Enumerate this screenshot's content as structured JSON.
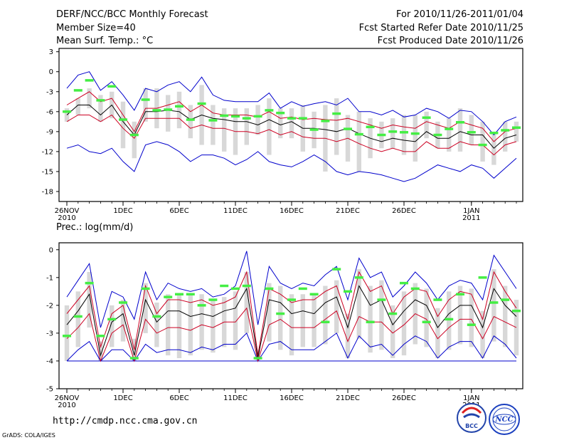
{
  "header": {
    "left": [
      "DERF/NCC/BCC Monthly Forecast",
      "Member Size=40",
      "Mean Surf. Temp.: °C"
    ],
    "right": [
      "For 2010/11/26-2011/01/04",
      "Fcst Started Refer Date 2010/11/25",
      "Fcst Produced Date 2010/11/26"
    ]
  },
  "footer": {
    "url": "http://cmdp.ncc.cma.gov.cn",
    "credit": "GrADS: COLA/IGES",
    "logo_left": "BCC",
    "logo_right": "NCC"
  },
  "colors": {
    "max_min": "#0000cc",
    "quartile": "#cc0022",
    "median": "#000000",
    "box": "#d8d8d8",
    "ensemble_mean": "#44ee44",
    "floor": "#0000cc"
  },
  "chart_data": [
    {
      "type": "box-line",
      "title": "Mean Surf. Temp.: °C",
      "days": 40,
      "ylim": [
        -19.5,
        3.5
      ],
      "yticks": [
        3,
        0,
        -3,
        -6,
        -9,
        -12,
        -15,
        -18
      ],
      "xticks": [
        {
          "day": 0,
          "label": "26NOV",
          "label2": "2010"
        },
        {
          "day": 5,
          "label": "1DEC"
        },
        {
          "day": 10,
          "label": "6DEC"
        },
        {
          "day": 15,
          "label": "11DEC"
        },
        {
          "day": 20,
          "label": "16DEC"
        },
        {
          "day": 25,
          "label": "21DEC"
        },
        {
          "day": 30,
          "label": "26DEC"
        },
        {
          "day": 36,
          "label": "1JAN",
          "label2": "2011"
        }
      ],
      "series": [
        {
          "name": "max",
          "values": [
            -2.5,
            -0.5,
            0,
            -2.8,
            -1.5,
            -3.5,
            -5.8,
            -2.5,
            -3,
            -2,
            -1.5,
            -3,
            -0.8,
            -3.5,
            -4.3,
            -4.5,
            -4.5,
            -4.5,
            -3.2,
            -5.5,
            -4.5,
            -5.2,
            -4.8,
            -4.5,
            -5,
            -4,
            -6,
            -6,
            -6.5,
            -5.8,
            -6.8,
            -6.5,
            -5.5,
            -6,
            -7,
            -5.8,
            -6,
            -7.5,
            -9.5,
            -7.5,
            -6.8
          ]
        },
        {
          "name": "q75",
          "values": [
            -5,
            -4,
            -3,
            -4.5,
            -4,
            -6.5,
            -9,
            -5.5,
            -5.5,
            -5,
            -4.5,
            -6,
            -5,
            -6.2,
            -6.5,
            -6.5,
            -6.5,
            -6.8,
            -6,
            -7,
            -6.8,
            -7.2,
            -7,
            -7.2,
            -7.3,
            -7,
            -7.5,
            -8,
            -8.5,
            -8,
            -8.3,
            -8.5,
            -7.5,
            -8,
            -8.5,
            -7.5,
            -8,
            -8.5,
            -10.5,
            -9,
            -8.5
          ]
        },
        {
          "name": "median",
          "values": [
            -6.5,
            -5,
            -5,
            -6.5,
            -5,
            -7.5,
            -9.5,
            -6,
            -6,
            -5.8,
            -6,
            -7.2,
            -6.5,
            -7,
            -7.2,
            -7.5,
            -7.5,
            -8,
            -7.2,
            -8,
            -7.5,
            -8.5,
            -8.5,
            -8.7,
            -9,
            -8.5,
            -9.3,
            -10,
            -10.5,
            -10,
            -10.3,
            -10.5,
            -9,
            -10,
            -10,
            -9,
            -9.5,
            -9.5,
            -11.5,
            -10,
            -9.5
          ]
        },
        {
          "name": "q25",
          "values": [
            -7.5,
            -6.5,
            -6.5,
            -7.5,
            -6.5,
            -8.5,
            -10,
            -7,
            -7,
            -7,
            -7,
            -8.5,
            -8,
            -8.5,
            -8.5,
            -9,
            -9,
            -9.3,
            -8.7,
            -9.5,
            -9,
            -9.8,
            -10,
            -10,
            -10.5,
            -10,
            -10.8,
            -11.5,
            -12,
            -11.5,
            -12,
            -12,
            -10.5,
            -11.5,
            -11.5,
            -10.5,
            -11,
            -11,
            -12.5,
            -11,
            -10.5
          ]
        },
        {
          "name": "min",
          "values": [
            -11.5,
            -11,
            -12,
            -12.3,
            -11.5,
            -13.5,
            -15,
            -11,
            -10.5,
            -11,
            -12,
            -13.5,
            -12.5,
            -12.5,
            -13,
            -14,
            -13.2,
            -12,
            -13.5,
            -14,
            -14.3,
            -13.5,
            -12.5,
            -13.5,
            -15,
            -15.5,
            -15,
            -15.2,
            -15.5,
            -16,
            -16.5,
            -16,
            -15,
            -14,
            -14.5,
            -15,
            -14,
            -14.5,
            -16,
            -14.5,
            -13
          ]
        },
        {
          "name": "box_hi",
          "values": [
            -5.5,
            -4,
            -2.5,
            -3.5,
            -3,
            -4.5,
            -7.5,
            -2.5,
            -2.5,
            -3.5,
            -3,
            -5,
            -2,
            -5,
            -5.5,
            -5.5,
            -5.5,
            -5,
            -4,
            -5.5,
            -5.5,
            -5,
            -6,
            -5,
            -4,
            -6.5,
            -6,
            -7,
            -7.5,
            -7,
            -6.5,
            -6.5,
            -6,
            -7.5,
            -7,
            -5.5,
            -6.5,
            -7.5,
            -9,
            -7.5,
            -7.5
          ]
        },
        {
          "name": "box_lo",
          "values": [
            -7.5,
            -6.5,
            -5.5,
            -7.5,
            -7,
            -11.5,
            -13,
            -7.5,
            -8.5,
            -9,
            -8.5,
            -10,
            -11,
            -11,
            -12,
            -12.5,
            -11,
            -9.5,
            -12.5,
            -10,
            -10,
            -12,
            -11.5,
            -15,
            -12.5,
            -13.5,
            -15,
            -13,
            -11.5,
            -11.5,
            -12.5,
            -13.5,
            -10,
            -11.5,
            -12,
            -12,
            -11,
            -13.5,
            -14,
            -12,
            -10.5
          ]
        },
        {
          "name": "ensemble_mean",
          "values": [
            -6,
            -2.8,
            -1.3,
            -4.3,
            -2.2,
            -7.2,
            -9.5,
            -4.2,
            -5.8,
            -5.7,
            -5.2,
            -7.2,
            -4.8,
            -7.3,
            -6.6,
            -6.7,
            -7,
            -6.7,
            -5.8,
            -6.2,
            -7,
            -7,
            -8.7,
            -7.4,
            -6.3,
            -8.6,
            -9.4,
            -8.3,
            -9.5,
            -9,
            -9.1,
            -9.3,
            -6.9,
            -9.5,
            -8.6,
            -7.6,
            -9.1,
            -11,
            -9.2,
            -8.8,
            -8.4
          ]
        }
      ]
    },
    {
      "type": "box-line",
      "title": "Prec.: log(mm/d)",
      "days": 40,
      "ylim": [
        -5,
        0.25
      ],
      "yticks": [
        0,
        -1,
        -2,
        -3,
        -4,
        -5
      ],
      "floor": -4,
      "xticks": [
        {
          "day": 0,
          "label": "26NOV",
          "label2": "2010"
        },
        {
          "day": 5,
          "label": "1DEC"
        },
        {
          "day": 10,
          "label": "6DEC"
        },
        {
          "day": 15,
          "label": "11DEC"
        },
        {
          "day": 20,
          "label": "16DEC"
        },
        {
          "day": 25,
          "label": "21DEC"
        },
        {
          "day": 30,
          "label": "26DEC"
        },
        {
          "day": 36,
          "label": "1JAN",
          "label2": "2011"
        }
      ],
      "series": [
        {
          "name": "max",
          "values": [
            -1.7,
            -1.1,
            -0.5,
            -2.8,
            -1.5,
            -1.7,
            -2.5,
            -0.8,
            -1.8,
            -1.2,
            -1.4,
            -1.5,
            -1.4,
            -1.7,
            -1.6,
            -1.3,
            -0.05,
            -2.7,
            -0.6,
            -1.2,
            -1.4,
            -1.2,
            -1.3,
            -0.9,
            -0.6,
            -1.8,
            -0.3,
            -1,
            -0.8,
            -1.7,
            -1.3,
            -0.8,
            -1.2,
            -1.8,
            -1.3,
            -1.1,
            -1.2,
            -1.8,
            -0.2,
            -0.8,
            -1.4
          ]
        },
        {
          "name": "q75",
          "values": [
            -2.3,
            -1.8,
            -1.3,
            -3.5,
            -2.3,
            -2,
            -3.6,
            -1.3,
            -2.3,
            -1.8,
            -1.8,
            -1.9,
            -1.8,
            -2,
            -1.9,
            -1.7,
            -0.8,
            -3.8,
            -1.4,
            -1.6,
            -1.9,
            -1.8,
            -1.8,
            -1.5,
            -1.3,
            -2.5,
            -0.8,
            -1.5,
            -1.3,
            -2.3,
            -1.7,
            -1.4,
            -1.5,
            -2.4,
            -1.8,
            -1.5,
            -1.6,
            -2.5,
            -0.8,
            -1.5,
            -2.1
          ]
        },
        {
          "name": "median",
          "values": [
            -2.7,
            -2.2,
            -1.6,
            -3.8,
            -2.6,
            -2.3,
            -3.8,
            -1.8,
            -2.6,
            -2.2,
            -2.2,
            -2.4,
            -2.3,
            -2.4,
            -2.2,
            -2.1,
            -1.4,
            -3.9,
            -1.8,
            -1.9,
            -2.3,
            -2.2,
            -2.3,
            -1.9,
            -1.7,
            -2.8,
            -1.3,
            -2,
            -1.8,
            -2.7,
            -2.2,
            -1.8,
            -2,
            -2.8,
            -2.3,
            -2,
            -2,
            -2.8,
            -1.4,
            -2,
            -2.4
          ]
        },
        {
          "name": "q25",
          "values": [
            -3.2,
            -2.8,
            -2.3,
            -4,
            -3,
            -2.7,
            -4,
            -2.5,
            -3,
            -2.8,
            -2.8,
            -2.9,
            -2.7,
            -2.8,
            -2.6,
            -2.6,
            -2.1,
            -4,
            -2.7,
            -2.5,
            -2.8,
            -2.8,
            -2.8,
            -2.5,
            -2.2,
            -3.3,
            -2.4,
            -2.6,
            -2.6,
            -3,
            -2.7,
            -2.3,
            -2.5,
            -3.2,
            -2.8,
            -2.5,
            -2.5,
            -3.2,
            -2.4,
            -2.6,
            -2.8
          ]
        },
        {
          "name": "min",
          "values": [
            -4,
            -3.6,
            -3.3,
            -4,
            -3.6,
            -3.6,
            -4,
            -3.4,
            -3.7,
            -3.6,
            -3.6,
            -3.7,
            -3.5,
            -3.6,
            -3.4,
            -3.4,
            -3,
            -4,
            -3.4,
            -3.3,
            -3.6,
            -3.6,
            -3.6,
            -3.3,
            -3,
            -3.9,
            -3.1,
            -3.5,
            -3.4,
            -3.8,
            -3.4,
            -3.1,
            -3.3,
            -3.9,
            -3.5,
            -3.3,
            -3.3,
            -3.9,
            -3.1,
            -3.4,
            -3.9
          ]
        },
        {
          "name": "box_hi",
          "values": [
            -2,
            -1.5,
            -0.8,
            -3.3,
            -2,
            -1.8,
            -3.2,
            -1.2,
            -1.9,
            -1.6,
            -1.6,
            -1.6,
            -1.6,
            -1.8,
            -1.7,
            -1.5,
            -0.8,
            -3.6,
            -1.2,
            -1.3,
            -1.6,
            -1.6,
            -1.6,
            -1.3,
            -1.1,
            -2.3,
            -0.7,
            -1.3,
            -1.1,
            -2,
            -1.5,
            -1.2,
            -1.4,
            -2.1,
            -1.5,
            -1.3,
            -1.4,
            -2.2,
            -0.7,
            -1.3,
            -1.8
          ]
        },
        {
          "name": "box_lo",
          "values": [
            -4,
            -3.5,
            -2.8,
            -4,
            -3.5,
            -3.3,
            -4,
            -3,
            -3.5,
            -3.8,
            -3.9,
            -3.8,
            -3.6,
            -3.7,
            -3.5,
            -3.6,
            -3,
            -4,
            -3.3,
            -3.6,
            -3.8,
            -3.5,
            -3.5,
            -3.4,
            -3,
            -3.9,
            -3.2,
            -3.7,
            -3.6,
            -3.9,
            -3.8,
            -3.4,
            -3.5,
            -3.9,
            -3.6,
            -3.4,
            -3.5,
            -3.9,
            -3.3,
            -3.5,
            -3.8
          ]
        },
        {
          "name": "ensemble_mean",
          "values": [
            -3.1,
            -2.4,
            -1.2,
            -3.1,
            -2.5,
            -1.9,
            -3.9,
            -1.4,
            -2.4,
            -1.7,
            -1.6,
            -1.6,
            -2.0,
            -1.8,
            -1.3,
            -1.4,
            -1.3,
            -3.9,
            -1.4,
            -2.3,
            -1.8,
            -1.4,
            -1.6,
            -2.6,
            -0.7,
            -1.5,
            -1.0,
            -2.6,
            -1.8,
            -2.3,
            -1.2,
            -1.4,
            -2.6,
            -1.8,
            -2.5,
            -1.6,
            -2.7,
            -1.0,
            -1.9,
            -1.8,
            -2.2
          ]
        }
      ]
    }
  ]
}
